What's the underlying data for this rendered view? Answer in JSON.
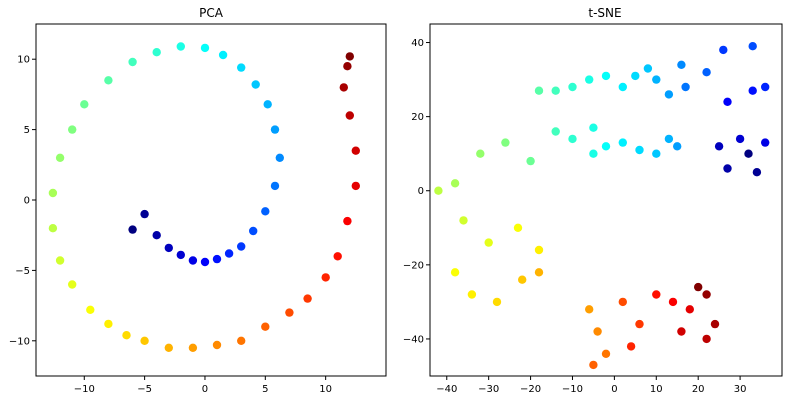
{
  "chart_data": [
    {
      "type": "scatter",
      "title": "PCA",
      "xlabel": "",
      "ylabel": "",
      "xlim": [
        -14,
        15
      ],
      "ylim": [
        -12.5,
        12.5
      ],
      "xticks": [
        "−10",
        "−5",
        "0",
        "5",
        "10"
      ],
      "yticks": [
        "10",
        "5",
        "0",
        "−5",
        "−10"
      ],
      "xtick_values": [
        -10,
        -5,
        0,
        5,
        10
      ],
      "ytick_values": [
        10,
        5,
        0,
        -5,
        -10
      ],
      "colormap": "jet",
      "color_variable": "position along the spiral (0 = blue center, 1 = dark red outer end)",
      "point_count": 1000,
      "shape": "spiral",
      "grid": false,
      "legend": "none",
      "series": [
        {
          "points_xyc": [
            [
              -6.0,
              -2.1,
              0.0
            ],
            [
              -5.0,
              -1.0,
              0.02
            ],
            [
              -4.0,
              -2.5,
              0.04
            ],
            [
              -3.0,
              -3.4,
              0.06
            ],
            [
              -2.0,
              -3.9,
              0.08
            ],
            [
              -1.0,
              -4.3,
              0.1
            ],
            [
              0.0,
              -4.4,
              0.12
            ],
            [
              1.0,
              -4.2,
              0.14
            ],
            [
              2.0,
              -3.8,
              0.16
            ],
            [
              3.0,
              -3.3,
              0.18
            ],
            [
              4.0,
              -2.2,
              0.2
            ],
            [
              5.0,
              -0.8,
              0.22
            ],
            [
              5.8,
              1.0,
              0.24
            ],
            [
              6.2,
              3.0,
              0.26
            ],
            [
              5.8,
              5.0,
              0.28
            ],
            [
              5.2,
              6.8,
              0.3
            ],
            [
              4.2,
              8.2,
              0.32
            ],
            [
              3.0,
              9.4,
              0.34
            ],
            [
              1.5,
              10.3,
              0.36
            ],
            [
              0.0,
              10.8,
              0.38
            ],
            [
              -2.0,
              10.9,
              0.4
            ],
            [
              -4.0,
              10.5,
              0.42
            ],
            [
              -6.0,
              9.8,
              0.44
            ],
            [
              -8.0,
              8.5,
              0.46
            ],
            [
              -10.0,
              6.8,
              0.48
            ],
            [
              -11.0,
              5.0,
              0.5
            ],
            [
              -12.0,
              3.0,
              0.52
            ],
            [
              -12.6,
              0.5,
              0.54
            ],
            [
              -12.6,
              -2.0,
              0.56
            ],
            [
              -12.0,
              -4.3,
              0.58
            ],
            [
              -11.0,
              -6.0,
              0.6
            ],
            [
              -9.5,
              -7.8,
              0.62
            ],
            [
              -8.0,
              -8.8,
              0.64
            ],
            [
              -6.5,
              -9.6,
              0.66
            ],
            [
              -5.0,
              -10.0,
              0.68
            ],
            [
              -3.0,
              -10.5,
              0.7
            ],
            [
              -1.0,
              -10.5,
              0.72
            ],
            [
              1.0,
              -10.3,
              0.74
            ],
            [
              3.0,
              -10.0,
              0.76
            ],
            [
              5.0,
              -9.0,
              0.78
            ],
            [
              7.0,
              -8.0,
              0.8
            ],
            [
              8.5,
              -7.0,
              0.82
            ],
            [
              10.0,
              -5.5,
              0.84
            ],
            [
              11.0,
              -4.0,
              0.86
            ],
            [
              11.8,
              -1.5,
              0.88
            ],
            [
              12.5,
              1.0,
              0.9
            ],
            [
              12.5,
              3.5,
              0.92
            ],
            [
              12.0,
              6.0,
              0.94
            ],
            [
              11.5,
              8.0,
              0.96
            ],
            [
              11.8,
              9.5,
              0.98
            ],
            [
              12.0,
              10.2,
              1.0
            ]
          ]
        }
      ]
    },
    {
      "type": "scatter",
      "title": "t-SNE",
      "xlabel": "",
      "ylabel": "",
      "xlim": [
        -44,
        40
      ],
      "ylim": [
        -50,
        45
      ],
      "xticks": [
        "−40",
        "−30",
        "−20",
        "−10",
        "0",
        "10",
        "20",
        "30"
      ],
      "yticks": [
        "40",
        "20",
        "0",
        "−20",
        "−40"
      ],
      "xtick_values": [
        -40,
        -30,
        -20,
        -10,
        0,
        10,
        20,
        30
      ],
      "ytick_values": [
        40,
        20,
        0,
        -20,
        -40
      ],
      "colormap": "jet",
      "color_variable": "position along the spiral (same coloring as PCA panel)",
      "point_count": 1000,
      "grid": false,
      "legend": "none",
      "series": [
        {
          "points_xyc": [
            [
              32.0,
              10.0,
              0.0
            ],
            [
              34.0,
              5.0,
              0.02
            ],
            [
              27.0,
              6.0,
              0.04
            ],
            [
              25.0,
              12.0,
              0.06
            ],
            [
              30.0,
              14.0,
              0.08
            ],
            [
              36.0,
              13.0,
              0.1
            ],
            [
              27.0,
              24.0,
              0.12
            ],
            [
              33.0,
              27.0,
              0.14
            ],
            [
              36.0,
              28.0,
              0.16
            ],
            [
              26.0,
              38.0,
              0.18
            ],
            [
              33.0,
              39.0,
              0.2
            ],
            [
              22.0,
              32.0,
              0.22
            ],
            [
              17.0,
              28.0,
              0.24
            ],
            [
              16.0,
              34.0,
              0.26
            ],
            [
              13.0,
              26.0,
              0.28
            ],
            [
              10.0,
              30.0,
              0.3
            ],
            [
              8.0,
              33.0,
              0.32
            ],
            [
              5.0,
              31.0,
              0.34
            ],
            [
              2.0,
              28.0,
              0.36
            ],
            [
              -2.0,
              31.0,
              0.38
            ],
            [
              -6.0,
              30.0,
              0.4
            ],
            [
              -10.0,
              28.0,
              0.42
            ],
            [
              -14.0,
              27.0,
              0.44
            ],
            [
              -18.0,
              27.0,
              0.46
            ],
            [
              13.0,
              14.0,
              0.3
            ],
            [
              15.0,
              12.0,
              0.28
            ],
            [
              10.0,
              10.0,
              0.32
            ],
            [
              6.0,
              11.0,
              0.34
            ],
            [
              2.0,
              13.0,
              0.36
            ],
            [
              -2.0,
              12.0,
              0.38
            ],
            [
              -5.0,
              10.0,
              0.4
            ],
            [
              -10.0,
              14.0,
              0.42
            ],
            [
              -14.0,
              16.0,
              0.44
            ],
            [
              -5.0,
              17.0,
              0.4
            ],
            [
              -20.0,
              8.0,
              0.48
            ],
            [
              -26.0,
              13.0,
              0.5
            ],
            [
              -32.0,
              10.0,
              0.52
            ],
            [
              -38.0,
              2.0,
              0.54
            ],
            [
              -42.0,
              0.0,
              0.56
            ],
            [
              -36.0,
              -8.0,
              0.58
            ],
            [
              -30.0,
              -14.0,
              0.6
            ],
            [
              -23.0,
              -10.0,
              0.62
            ],
            [
              -18.0,
              -16.0,
              0.64
            ],
            [
              -38.0,
              -22.0,
              0.62
            ],
            [
              -34.0,
              -28.0,
              0.64
            ],
            [
              -28.0,
              -30.0,
              0.66
            ],
            [
              -22.0,
              -24.0,
              0.68
            ],
            [
              -18.0,
              -22.0,
              0.7
            ],
            [
              -6.0,
              -32.0,
              0.72
            ],
            [
              -4.0,
              -38.0,
              0.74
            ],
            [
              -2.0,
              -44.0,
              0.76
            ],
            [
              -5.0,
              -47.0,
              0.78
            ],
            [
              2.0,
              -30.0,
              0.8
            ],
            [
              6.0,
              -36.0,
              0.82
            ],
            [
              4.0,
              -42.0,
              0.84
            ],
            [
              10.0,
              -28.0,
              0.86
            ],
            [
              14.0,
              -30.0,
              0.88
            ],
            [
              18.0,
              -32.0,
              0.9
            ],
            [
              16.0,
              -38.0,
              0.92
            ],
            [
              22.0,
              -40.0,
              0.94
            ],
            [
              24.0,
              -36.0,
              0.96
            ],
            [
              22.0,
              -28.0,
              0.98
            ],
            [
              20.0,
              -26.0,
              1.0
            ]
          ]
        }
      ]
    }
  ]
}
